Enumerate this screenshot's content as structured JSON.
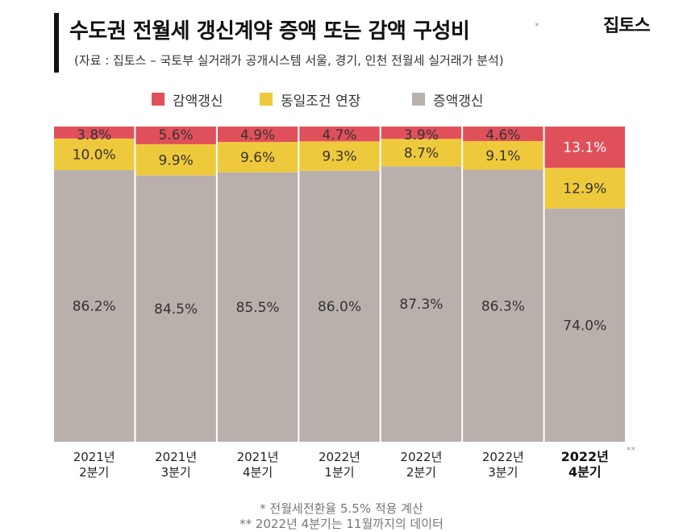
{
  "header": {
    "title": "수도권 전월세 갱신계약 증액 또는 감액 구성비",
    "title_mark": "*",
    "subtitle": "(자료 : 집토스 – 국토부 실거래가 공개시스템 서울, 경기, 인천 전월세 실거래가 분석)",
    "brand": "집토스"
  },
  "chart_data": {
    "type": "bar",
    "stacked": true,
    "normalized_percent": true,
    "title": "수도권 전월세 갱신계약 증액 또는 감액 구성비",
    "xlabel": "",
    "ylabel": "",
    "ylim": [
      0,
      100
    ],
    "grid": false,
    "legend_position": "top",
    "categories": [
      [
        "2021년",
        "2분기"
      ],
      [
        "2021년",
        "3분기"
      ],
      [
        "2021년",
        "4분기"
      ],
      [
        "2022년",
        "1분기"
      ],
      [
        "2022년",
        "2분기"
      ],
      [
        "2022년",
        "3분기"
      ],
      [
        "2022년",
        "4분기"
      ]
    ],
    "highlight_category_index": 6,
    "highlight_mark": "**",
    "series": [
      {
        "name": "증액갱신",
        "color": "#b9b0ac",
        "values": [
          86.2,
          84.5,
          85.5,
          86.0,
          87.3,
          86.3,
          74.0
        ],
        "labels": [
          "86.2%",
          "84.5%",
          "85.5%",
          "86.0%",
          "87.3%",
          "86.3%",
          "74.0%"
        ]
      },
      {
        "name": "동일조건 연장",
        "color": "#efc93c",
        "values": [
          10.0,
          9.9,
          9.6,
          9.3,
          8.7,
          9.1,
          12.9
        ],
        "labels": [
          "10.0%",
          "9.9%",
          "9.6%",
          "9.3%",
          "8.7%",
          "9.1%",
          "12.9%"
        ]
      },
      {
        "name": "감액갱신",
        "color": "#e0505a",
        "values": [
          3.8,
          5.6,
          4.9,
          4.7,
          3.9,
          4.6,
          13.1
        ],
        "labels": [
          "3.8%",
          "5.6%",
          "4.9%",
          "4.7%",
          "3.9%",
          "4.6%",
          "13.1%"
        ]
      }
    ],
    "legend_order": [
      2,
      1,
      0
    ]
  },
  "footnotes": [
    "* 전월세전환율 5.5% 적용 계산",
    "** 2022년 4분기는 11월까지의 데이터"
  ]
}
